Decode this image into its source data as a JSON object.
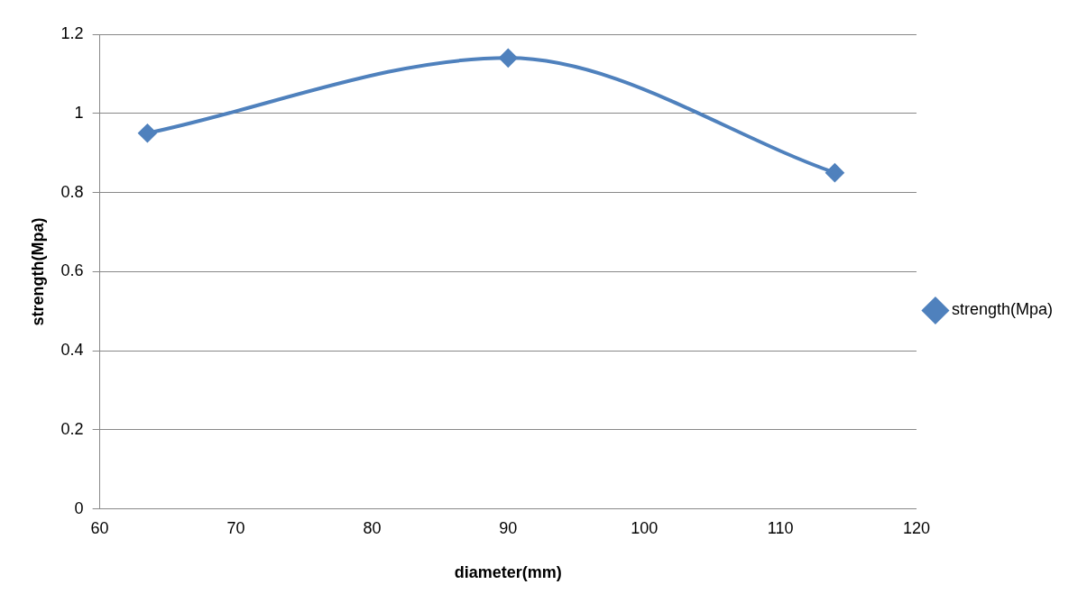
{
  "chart_data": {
    "type": "line",
    "xlabel": "diameter(mm)",
    "ylabel": "strength(Mpa)",
    "x": [
      63.5,
      90,
      114
    ],
    "series": [
      {
        "name": "strength(Mpa)",
        "color": "#4f81bd",
        "values": [
          0.95,
          1.14,
          0.85
        ]
      }
    ],
    "xlim": [
      60,
      120
    ],
    "xticks": [
      60,
      70,
      80,
      90,
      100,
      110,
      120
    ],
    "ylim": [
      0,
      1.2
    ],
    "yticks": [
      0,
      0.2,
      0.4,
      0.6,
      0.8,
      1,
      1.2
    ],
    "grid": "y",
    "legend": "right",
    "marker": "diamond",
    "line_style": "solid"
  }
}
